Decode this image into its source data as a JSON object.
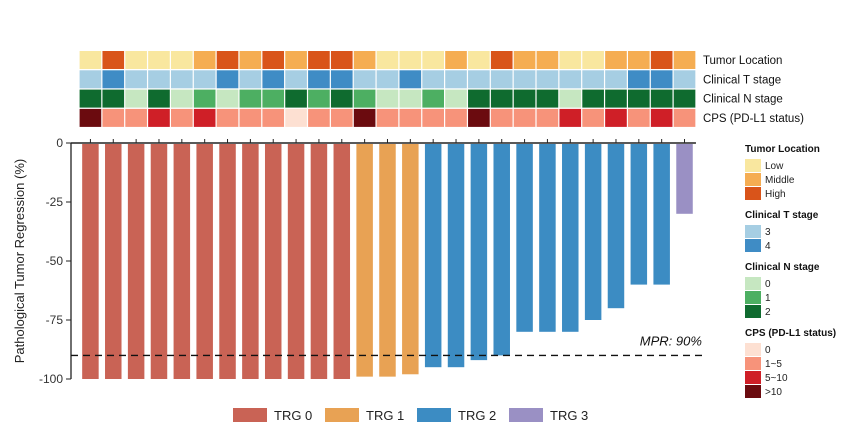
{
  "chart_data": {
    "type": "bar",
    "ylabel": "Pathological Tumor Regression (%)",
    "ylim": [
      -100,
      0
    ],
    "yticks": [
      0,
      -25,
      -50,
      -75,
      -100
    ],
    "threshold": {
      "value": -90,
      "label": "MPR: 90%"
    },
    "colors": {
      "TRG 0": "#c96355",
      "TRG 1": "#e8a254",
      "TRG 2": "#3c8cc3",
      "TRG 3": "#9a90c4"
    },
    "bars": [
      {
        "value": -100,
        "trg": "TRG 0"
      },
      {
        "value": -100,
        "trg": "TRG 0"
      },
      {
        "value": -100,
        "trg": "TRG 0"
      },
      {
        "value": -100,
        "trg": "TRG 0"
      },
      {
        "value": -100,
        "trg": "TRG 0"
      },
      {
        "value": -100,
        "trg": "TRG 0"
      },
      {
        "value": -100,
        "trg": "TRG 0"
      },
      {
        "value": -100,
        "trg": "TRG 0"
      },
      {
        "value": -100,
        "trg": "TRG 0"
      },
      {
        "value": -100,
        "trg": "TRG 0"
      },
      {
        "value": -100,
        "trg": "TRG 0"
      },
      {
        "value": -100,
        "trg": "TRG 0"
      },
      {
        "value": -99,
        "trg": "TRG 1"
      },
      {
        "value": -99,
        "trg": "TRG 1"
      },
      {
        "value": -98,
        "trg": "TRG 1"
      },
      {
        "value": -95,
        "trg": "TRG 2"
      },
      {
        "value": -95,
        "trg": "TRG 2"
      },
      {
        "value": -92,
        "trg": "TRG 2"
      },
      {
        "value": -90,
        "trg": "TRG 2"
      },
      {
        "value": -80,
        "trg": "TRG 2"
      },
      {
        "value": -80,
        "trg": "TRG 2"
      },
      {
        "value": -80,
        "trg": "TRG 2"
      },
      {
        "value": -75,
        "trg": "TRG 2"
      },
      {
        "value": -70,
        "trg": "TRG 2"
      },
      {
        "value": -60,
        "trg": "TRG 2"
      },
      {
        "value": -60,
        "trg": "TRG 2"
      },
      {
        "value": -30,
        "trg": "TRG 3"
      }
    ],
    "bar_legend": [
      "TRG 0",
      "TRG 1",
      "TRG 2",
      "TRG 3"
    ],
    "heatmap": {
      "rows": [
        {
          "label": "Tumor Location",
          "legend_title": "Tumor Location",
          "levels": [
            "Low",
            "Middle",
            "High"
          ],
          "colors": [
            "#f9e79f",
            "#f5ad52",
            "#d9541a"
          ],
          "values": [
            "Low",
            "High",
            "Low",
            "Low",
            "Low",
            "Middle",
            "High",
            "Middle",
            "High",
            "Middle",
            "High",
            "High",
            "Middle",
            "Low",
            "Low",
            "Low",
            "Middle",
            "Low",
            "High",
            "Middle",
            "Middle",
            "Low",
            "Low",
            "Middle",
            "Middle",
            "High",
            "Middle"
          ]
        },
        {
          "label": "Clinical T stage",
          "legend_title": "Clinical T stage",
          "levels": [
            "3",
            "4"
          ],
          "colors": [
            "#a6cee3",
            "#3f8cc5"
          ],
          "values": [
            "3",
            "4",
            "3",
            "3",
            "3",
            "3",
            "4",
            "3",
            "4",
            "3",
            "4",
            "4",
            "3",
            "3",
            "4",
            "3",
            "3",
            "3",
            "3",
            "3",
            "3",
            "3",
            "3",
            "3",
            "4",
            "4",
            "3"
          ]
        },
        {
          "label": "Clinical N stage",
          "legend_title": "Clinical N stage",
          "levels": [
            "0",
            "1",
            "2"
          ],
          "colors": [
            "#c6e7c1",
            "#4daf62",
            "#0f6b2f"
          ],
          "values": [
            "2",
            "2",
            "0",
            "2",
            "0",
            "1",
            "0",
            "1",
            "1",
            "2",
            "1",
            "2",
            "1",
            "0",
            "0",
            "1",
            "0",
            "2",
            "2",
            "2",
            "2",
            "0",
            "2",
            "2",
            "2",
            "2",
            "2"
          ]
        },
        {
          "label": "CPS (PD-L1 status)",
          "legend_title": "CPS (PD-L1 status)",
          "levels": [
            "0",
            "1~5",
            "5~10",
            ">10"
          ],
          "colors": [
            "#fde0d2",
            "#f7937a",
            "#cf1f27",
            "#6b0b0f"
          ],
          "values": [
            ">10",
            "1~5",
            "1~5",
            "5~10",
            "1~5",
            "5~10",
            "1~5",
            "1~5",
            "1~5",
            "0",
            "1~5",
            "1~5",
            ">10",
            "1~5",
            "1~5",
            "1~5",
            "1~5",
            ">10",
            "1~5",
            "1~5",
            "1~5",
            "5~10",
            "1~5",
            "5~10",
            "1~5",
            "5~10",
            "1~5"
          ]
        }
      ]
    }
  }
}
